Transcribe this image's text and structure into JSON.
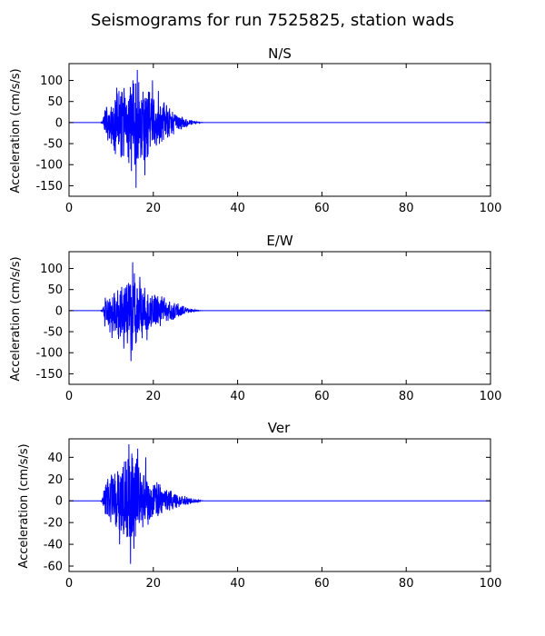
{
  "figure": {
    "suptitle": "Seismograms for run 7525825, station wads"
  },
  "style": {
    "trace_color": "#0000ff",
    "axis_color": "#000000",
    "background": "#ffffff"
  },
  "chart_data": [
    {
      "type": "line",
      "title": "N/S",
      "xlabel": "",
      "ylabel": "Acceleration (cm/s/s)",
      "xlim": [
        0,
        100
      ],
      "ylim": [
        -175,
        140
      ],
      "xticks": [
        0,
        20,
        40,
        60,
        80,
        100
      ],
      "yticks": [
        100,
        50,
        0,
        -50,
        -100,
        -150
      ],
      "grid": false,
      "legend": "none",
      "series": [
        {
          "envelope": [
            [
              0,
              0
            ],
            [
              7.5,
              0
            ],
            [
              8,
              5
            ],
            [
              8.5,
              35
            ],
            [
              9,
              45
            ],
            [
              10,
              60
            ],
            [
              11,
              85
            ],
            [
              12,
              95
            ],
            [
              13,
              105
            ],
            [
              14,
              100
            ],
            [
              15,
              110
            ],
            [
              16,
              125
            ],
            [
              17,
              110
            ],
            [
              18,
              95
            ],
            [
              19,
              90
            ],
            [
              20,
              80
            ],
            [
              21,
              60
            ],
            [
              22,
              55
            ],
            [
              23,
              45
            ],
            [
              24,
              35
            ],
            [
              25,
              30
            ],
            [
              26,
              22
            ],
            [
              27,
              15
            ],
            [
              28,
              10
            ],
            [
              29,
              6
            ],
            [
              30,
              3
            ],
            [
              31,
              1
            ],
            [
              32,
              0
            ],
            [
              100,
              0
            ]
          ],
          "peaks": [
            [
              16.2,
              125
            ],
            [
              15.9,
              -155
            ],
            [
              18.0,
              -125
            ],
            [
              11.0,
              -75
            ],
            [
              19.8,
              100
            ],
            [
              14.8,
              -115
            ],
            [
              12.3,
              -70
            ],
            [
              21.2,
              75
            ]
          ]
        }
      ]
    },
    {
      "type": "line",
      "title": "E/W",
      "xlabel": "",
      "ylabel": "Acceleration (cm/s/s)",
      "xlim": [
        0,
        100
      ],
      "ylim": [
        -175,
        140
      ],
      "xticks": [
        0,
        20,
        40,
        60,
        80,
        100
      ],
      "yticks": [
        100,
        50,
        0,
        -50,
        -100,
        -150
      ],
      "grid": false,
      "legend": "none",
      "series": [
        {
          "envelope": [
            [
              0,
              0
            ],
            [
              7.5,
              0
            ],
            [
              8,
              5
            ],
            [
              8.5,
              40
            ],
            [
              9,
              45
            ],
            [
              10,
              55
            ],
            [
              11,
              60
            ],
            [
              12,
              70
            ],
            [
              13,
              75
            ],
            [
              14,
              85
            ],
            [
              15,
              100
            ],
            [
              16,
              80
            ],
            [
              17,
              70
            ],
            [
              18,
              60
            ],
            [
              19,
              50
            ],
            [
              20,
              45
            ],
            [
              21,
              40
            ],
            [
              22,
              35
            ],
            [
              23,
              30
            ],
            [
              24,
              28
            ],
            [
              25,
              25
            ],
            [
              26,
              18
            ],
            [
              27,
              12
            ],
            [
              28,
              8
            ],
            [
              29,
              5
            ],
            [
              30,
              2
            ],
            [
              31,
              0.5
            ],
            [
              32,
              0
            ],
            [
              100,
              0
            ]
          ],
          "peaks": [
            [
              15.1,
              115
            ],
            [
              14.7,
              -120
            ],
            [
              13.0,
              -90
            ],
            [
              16.8,
              80
            ],
            [
              10.2,
              -65
            ],
            [
              18.5,
              -70
            ]
          ]
        }
      ]
    },
    {
      "type": "line",
      "title": "Ver",
      "xlabel": "",
      "ylabel": "Acceleration (cm/s/s)",
      "xlim": [
        0,
        100
      ],
      "ylim": [
        -65,
        57
      ],
      "xticks": [
        0,
        20,
        40,
        60,
        80,
        100
      ],
      "yticks": [
        40,
        20,
        0,
        -20,
        -40,
        -60
      ],
      "grid": false,
      "legend": "none",
      "series": [
        {
          "envelope": [
            [
              0,
              0
            ],
            [
              7.5,
              0
            ],
            [
              8,
              3
            ],
            [
              8.5,
              18
            ],
            [
              9,
              25
            ],
            [
              10,
              28
            ],
            [
              11,
              30
            ],
            [
              12,
              33
            ],
            [
              13,
              38
            ],
            [
              14,
              45
            ],
            [
              15,
              45
            ],
            [
              16,
              40
            ],
            [
              17,
              35
            ],
            [
              18,
              30
            ],
            [
              19,
              28
            ],
            [
              20,
              20
            ],
            [
              21,
              18
            ],
            [
              22,
              15
            ],
            [
              23,
              12
            ],
            [
              24,
              10
            ],
            [
              25,
              8
            ],
            [
              26,
              6
            ],
            [
              27,
              5
            ],
            [
              28,
              4
            ],
            [
              29,
              2.5
            ],
            [
              30,
              1.5
            ],
            [
              31,
              0.5
            ],
            [
              32,
              0
            ],
            [
              100,
              0
            ]
          ],
          "peaks": [
            [
              14.2,
              52
            ],
            [
              14.6,
              -58
            ],
            [
              16.3,
              48
            ],
            [
              12.0,
              -40
            ],
            [
              15.4,
              -44
            ],
            [
              18.2,
              40
            ]
          ]
        }
      ]
    }
  ]
}
